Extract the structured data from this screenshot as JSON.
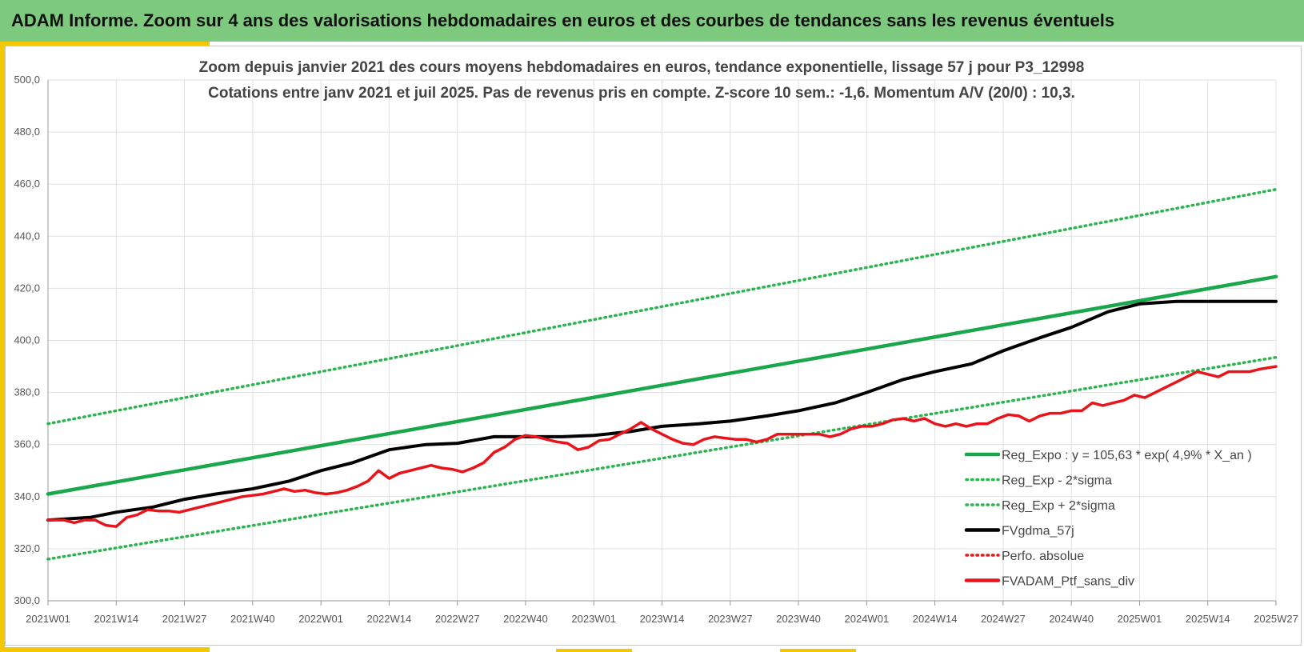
{
  "banner": {
    "title": "ADAM Informe. Zoom sur 4 ans des valorisations hebdomadaires en euros et des courbes de tendances sans les revenus éventuels"
  },
  "colors": {
    "banner": "#7dc97d",
    "accent": "#f3c800",
    "trend_green": "#1aa64a",
    "band_green": "#2db350",
    "smooth_black": "#000000",
    "price_red": "#e8141b"
  },
  "chart_data": {
    "type": "line",
    "title_line1": "Zoom depuis janvier 2021 des cours moyens hebdomadaires  en euros, tendance exponentielle, lissage 57 j pour P3_12998",
    "title_line2": "Cotations entre janv 2021 et juil 2025. Pas de revenus pris en compte. Z-score 10 sem.: -1,6. Momentum A/V (20/0) : 10,3.",
    "x_categories": [
      "2021W01",
      "2021W14",
      "2021W27",
      "2021W40",
      "2022W01",
      "2022W14",
      "2022W27",
      "2022W40",
      "2023W01",
      "2023W14",
      "2023W27",
      "2023W40",
      "2024W01",
      "2024W14",
      "2024W27",
      "2024W40",
      "2025W01",
      "2025W14",
      "2025W27"
    ],
    "y_ticks": [
      "300,0",
      "320,0",
      "340,0",
      "360,0",
      "380,0",
      "400,0",
      "420,0",
      "440,0",
      "460,0",
      "480,0",
      "500,0"
    ],
    "ylim": [
      300,
      500
    ],
    "grid": true,
    "legend_position": "bottom-right",
    "legend": [
      {
        "label": "Reg_Expo : y = 105,63 * exp( 4,9% *  X_an )",
        "style": "solid",
        "color": "#1aa64a"
      },
      {
        "label": "Reg_Exp - 2*sigma",
        "style": "dotted",
        "color": "#2db350"
      },
      {
        "label": "Reg_Exp + 2*sigma",
        "style": "dotted",
        "color": "#2db350"
      },
      {
        "label": "FVgdma_57j",
        "style": "solid",
        "color": "#000000"
      },
      {
        "label": "Perfo. absolue",
        "style": "dotted",
        "color": "#e8141b"
      },
      {
        "label": "FVADAM_Ptf_sans_div",
        "style": "solid",
        "color": "#e8141b"
      }
    ],
    "series": [
      {
        "name": "Reg_Expo : y = 105,63 * exp( 4,9% *  X_an )",
        "points": [
          [
            0,
            341
          ],
          [
            234,
            424.5
          ]
        ]
      },
      {
        "name": "Reg_Exp + 2*sigma",
        "points": [
          [
            0,
            368
          ],
          [
            234,
            458
          ]
        ]
      },
      {
        "name": "Reg_Exp - 2*sigma",
        "points": [
          [
            0,
            316
          ],
          [
            234,
            393.5
          ]
        ]
      },
      {
        "name": "FVgdma_57j",
        "points": [
          [
            0,
            331
          ],
          [
            8,
            332
          ],
          [
            13,
            334
          ],
          [
            20,
            336
          ],
          [
            26,
            339
          ],
          [
            32,
            341
          ],
          [
            39,
            343
          ],
          [
            46,
            346
          ],
          [
            52,
            350
          ],
          [
            58,
            353
          ],
          [
            65,
            358
          ],
          [
            72,
            360
          ],
          [
            78,
            360.5
          ],
          [
            85,
            363
          ],
          [
            91,
            363
          ],
          [
            98,
            363
          ],
          [
            104,
            363.5
          ],
          [
            111,
            365
          ],
          [
            117,
            367
          ],
          [
            124,
            368
          ],
          [
            130,
            369
          ],
          [
            137,
            371
          ],
          [
            143,
            373
          ],
          [
            150,
            376
          ],
          [
            156,
            380
          ],
          [
            163,
            385
          ],
          [
            169,
            388
          ],
          [
            176,
            391
          ],
          [
            182,
            396
          ],
          [
            189,
            401
          ],
          [
            195,
            405
          ],
          [
            202,
            411
          ],
          [
            208,
            414
          ],
          [
            215,
            415
          ],
          [
            222,
            415
          ],
          [
            234,
            415
          ]
        ]
      },
      {
        "name": "FVADAM_Ptf_sans_div",
        "points": [
          [
            0,
            331
          ],
          [
            3,
            331
          ],
          [
            5,
            330
          ],
          [
            7,
            331
          ],
          [
            9,
            331
          ],
          [
            11,
            329
          ],
          [
            13,
            328.5
          ],
          [
            15,
            332
          ],
          [
            17,
            333
          ],
          [
            19,
            335
          ],
          [
            21,
            334.5
          ],
          [
            23,
            334.5
          ],
          [
            25,
            334
          ],
          [
            27,
            335
          ],
          [
            29,
            336
          ],
          [
            31,
            337
          ],
          [
            33,
            338
          ],
          [
            35,
            339
          ],
          [
            37,
            340
          ],
          [
            39,
            340.5
          ],
          [
            41,
            341
          ],
          [
            43,
            342
          ],
          [
            45,
            343
          ],
          [
            47,
            342
          ],
          [
            49,
            342.5
          ],
          [
            51,
            341.5
          ],
          [
            53,
            341
          ],
          [
            55,
            341.5
          ],
          [
            57,
            342.5
          ],
          [
            59,
            344
          ],
          [
            61,
            346
          ],
          [
            63,
            350
          ],
          [
            65,
            347
          ],
          [
            67,
            349
          ],
          [
            69,
            350
          ],
          [
            71,
            351
          ],
          [
            73,
            352
          ],
          [
            75,
            351
          ],
          [
            77,
            350.5
          ],
          [
            79,
            349.5
          ],
          [
            81,
            351
          ],
          [
            83,
            353
          ],
          [
            85,
            357
          ],
          [
            87,
            359
          ],
          [
            89,
            362
          ],
          [
            91,
            363.5
          ],
          [
            93,
            363
          ],
          [
            95,
            362
          ],
          [
            97,
            361
          ],
          [
            99,
            360.5
          ],
          [
            101,
            358
          ],
          [
            103,
            359
          ],
          [
            105,
            361.5
          ],
          [
            107,
            362
          ],
          [
            109,
            364
          ],
          [
            111,
            366
          ],
          [
            113,
            368.5
          ],
          [
            115,
            366
          ],
          [
            117,
            364
          ],
          [
            119,
            362
          ],
          [
            121,
            360.5
          ],
          [
            123,
            360
          ],
          [
            125,
            362
          ],
          [
            127,
            363
          ],
          [
            129,
            362.5
          ],
          [
            131,
            362
          ],
          [
            133,
            362
          ],
          [
            135,
            361
          ],
          [
            137,
            362
          ],
          [
            139,
            364
          ],
          [
            141,
            364
          ],
          [
            143,
            364
          ],
          [
            145,
            364
          ],
          [
            147,
            364
          ],
          [
            149,
            363
          ],
          [
            151,
            364
          ],
          [
            153,
            366
          ],
          [
            155,
            367
          ],
          [
            157,
            367
          ],
          [
            159,
            368
          ],
          [
            161,
            369.5
          ],
          [
            163,
            370
          ],
          [
            165,
            369
          ],
          [
            167,
            370
          ],
          [
            169,
            368
          ],
          [
            171,
            367
          ],
          [
            173,
            368
          ],
          [
            175,
            367
          ],
          [
            177,
            368
          ],
          [
            179,
            368
          ],
          [
            181,
            370
          ],
          [
            183,
            371.5
          ],
          [
            185,
            371
          ],
          [
            187,
            369
          ],
          [
            189,
            371
          ],
          [
            191,
            372
          ],
          [
            193,
            372
          ],
          [
            195,
            373
          ],
          [
            197,
            373
          ],
          [
            199,
            376
          ],
          [
            201,
            375
          ],
          [
            203,
            376
          ],
          [
            205,
            377
          ],
          [
            207,
            379
          ],
          [
            209,
            378
          ],
          [
            211,
            380
          ],
          [
            213,
            382
          ],
          [
            215,
            384
          ],
          [
            217,
            386
          ],
          [
            219,
            388
          ],
          [
            221,
            387
          ],
          [
            223,
            386
          ],
          [
            225,
            388
          ],
          [
            227,
            388
          ],
          [
            229,
            388
          ],
          [
            231,
            389
          ],
          [
            234,
            390
          ]
        ]
      }
    ]
  }
}
